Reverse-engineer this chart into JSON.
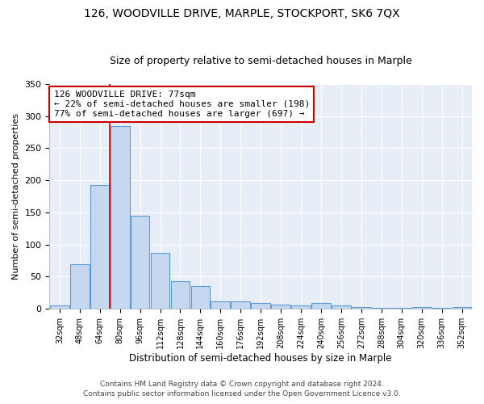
{
  "title": "126, WOODVILLE DRIVE, MARPLE, STOCKPORT, SK6 7QX",
  "subtitle": "Size of property relative to semi-detached houses in Marple",
  "xlabel": "Distribution of semi-detached houses by size in Marple",
  "ylabel": "Number of semi-detached properties",
  "categories": [
    "32sqm",
    "48sqm",
    "64sqm",
    "80sqm",
    "96sqm",
    "112sqm",
    "128sqm",
    "144sqm",
    "160sqm",
    "176sqm",
    "192sqm",
    "208sqm",
    "224sqm",
    "240sqm",
    "256sqm",
    "272sqm",
    "288sqm",
    "304sqm",
    "320sqm",
    "336sqm",
    "352sqm"
  ],
  "values": [
    5,
    69,
    193,
    285,
    145,
    87,
    43,
    36,
    12,
    12,
    9,
    6,
    5,
    9,
    5,
    3,
    1,
    1,
    3,
    1,
    3
  ],
  "bar_color": "#c5d8f0",
  "bar_edge_color": "#5b9bd5",
  "vline_index": 2.5,
  "annotation_text": "126 WOODVILLE DRIVE: 77sqm\n← 22% of semi-detached houses are smaller (198)\n77% of semi-detached houses are larger (697) →",
  "annotation_box_color": "#ffffff",
  "annotation_box_edge_color": "#cc0000",
  "vline_color": "#cc0000",
  "ylim": [
    0,
    350
  ],
  "yticks": [
    0,
    50,
    100,
    150,
    200,
    250,
    300,
    350
  ],
  "footer_line1": "Contains HM Land Registry data © Crown copyright and database right 2024.",
  "footer_line2": "Contains public sector information licensed under the Open Government Licence v3.0.",
  "background_color": "#e8eef7",
  "title_fontsize": 10,
  "subtitle_fontsize": 9
}
